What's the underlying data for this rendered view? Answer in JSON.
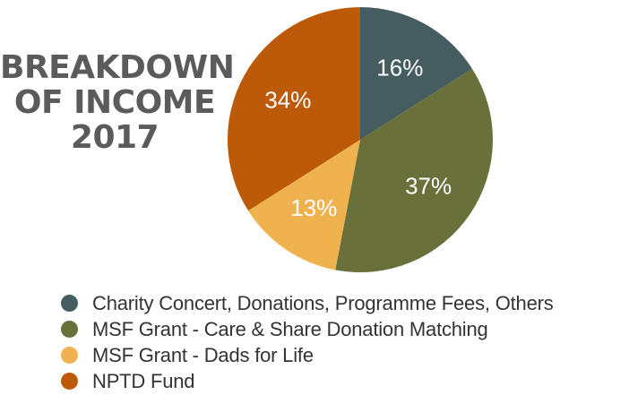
{
  "chart_data": {
    "type": "pie",
    "title_lines": [
      "BREAKDOWN",
      "OF INCOME",
      "2017"
    ],
    "slices": [
      {
        "label": "Charity Concert, Donations, Programme Fees, Others",
        "value": 16,
        "display": "16%",
        "color": "#455d60"
      },
      {
        "label": "MSF Grant - Care & Share Donation Matching",
        "value": 37,
        "display": "37%",
        "color": "#6a703a"
      },
      {
        "label": "MSF Grant - Dads for Life",
        "value": 13,
        "display": "13%",
        "color": "#f0b24f"
      },
      {
        "label": "NPTD Fund",
        "value": 34,
        "display": "34%",
        "color": "#bd5a09"
      }
    ],
    "start": "top",
    "direction": "clockwise",
    "legend_position": "bottom"
  }
}
